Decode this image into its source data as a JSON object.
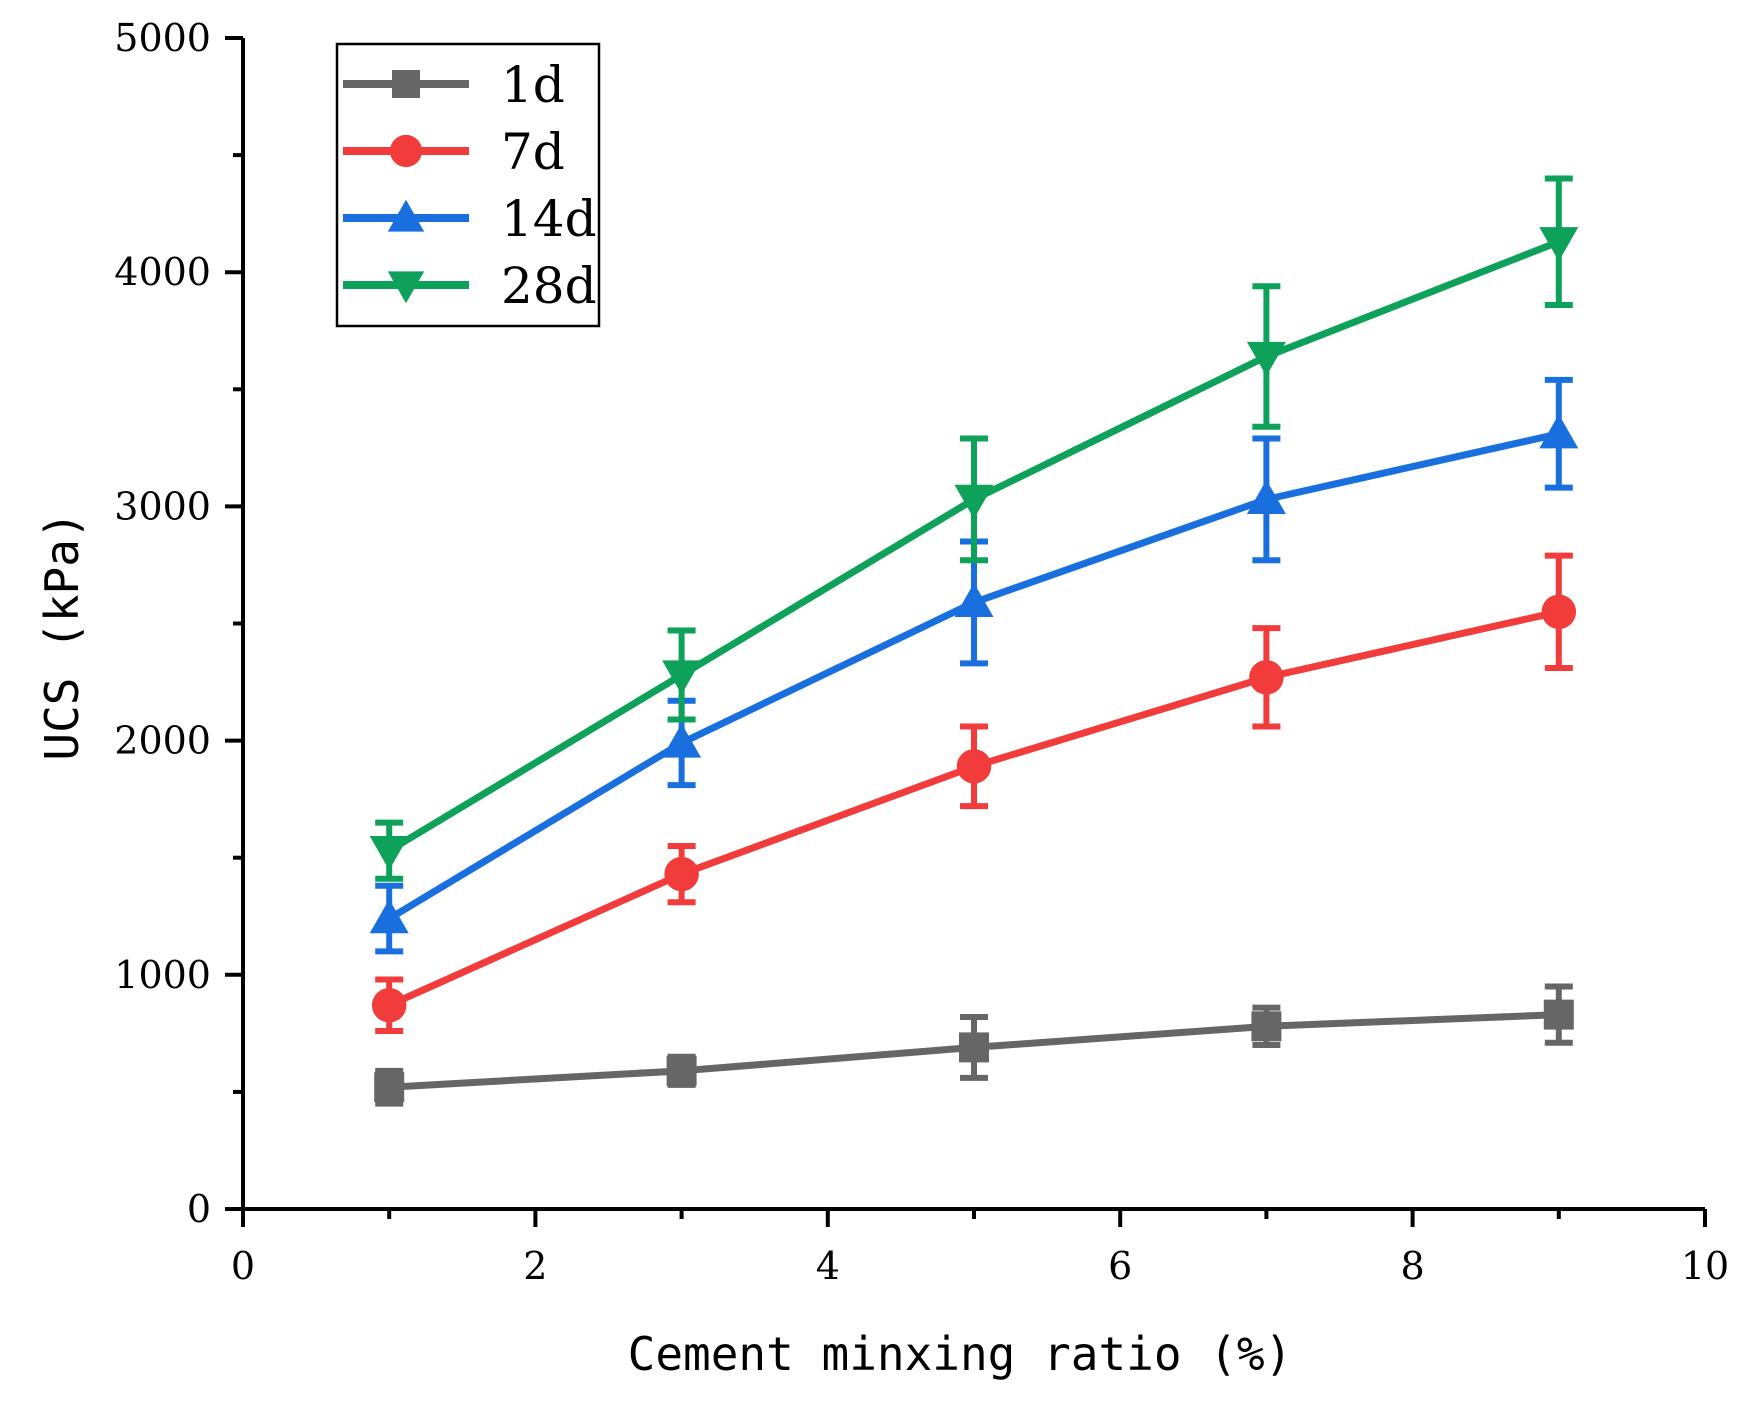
{
  "chart_data": {
    "type": "line",
    "title": "",
    "xlabel": "Cement minxing ratio (%)",
    "ylabel": "UCS (kPa)",
    "xlim": [
      0,
      10
    ],
    "ylim": [
      0,
      5000
    ],
    "x_ticks": [
      "0",
      "2",
      "4",
      "6",
      "8",
      "10"
    ],
    "y_ticks": [
      "0",
      "1000",
      "2000",
      "3000",
      "4000",
      "5000"
    ],
    "legend_position": "top-left",
    "x": [
      1,
      3,
      5,
      7,
      9
    ],
    "series": [
      {
        "name": "1d",
        "color": "#666666",
        "marker": "square",
        "values": [
          520,
          590,
          690,
          780,
          830
        ],
        "errors": [
          70,
          60,
          130,
          80,
          120
        ]
      },
      {
        "name": "7d",
        "color": "#f23c3c",
        "marker": "circle",
        "values": [
          870,
          1430,
          1890,
          2270,
          2550
        ],
        "errors": [
          110,
          120,
          170,
          210,
          240
        ]
      },
      {
        "name": "14d",
        "color": "#1a6fdf",
        "marker": "triangle-up",
        "values": [
          1240,
          1990,
          2590,
          3030,
          3310
        ],
        "errors": [
          140,
          180,
          260,
          260,
          230
        ]
      },
      {
        "name": "28d",
        "color": "#0da15a",
        "marker": "triangle-down",
        "values": [
          1530,
          2280,
          3030,
          3640,
          4130
        ],
        "errors": [
          120,
          190,
          260,
          300,
          270
        ]
      }
    ]
  }
}
